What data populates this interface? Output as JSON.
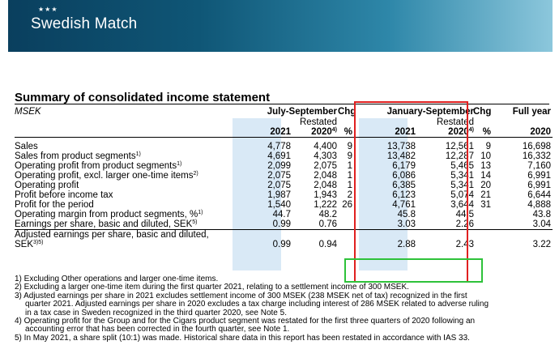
{
  "header": {
    "logo_stars": "★★★",
    "logo": "Swedish Match"
  },
  "table": {
    "title": "Summary of consolidated income statement",
    "unit": "MSEK",
    "period_q3": "July-September",
    "period_ytd": "January-September",
    "chg": "Chg",
    "full_year": "Full year",
    "restated": "Restated",
    "year_2021": "2021",
    "year_2020": "2020",
    "note_4": "4)",
    "percent": "%",
    "rows": [
      {
        "label": "Sales",
        "sup": "",
        "q3_2021": "4,778",
        "q3_2020": "4,400",
        "chg_q3": "9",
        "ytd_2021": "13,738",
        "ytd_2020": "12,561",
        "chg_ytd": "9",
        "fy_2020": "16,698"
      },
      {
        "label": "Sales from product segments",
        "sup": "1)",
        "q3_2021": "4,691",
        "q3_2020": "4,303",
        "chg_q3": "9",
        "ytd_2021": "13,482",
        "ytd_2020": "12,287",
        "chg_ytd": "10",
        "fy_2020": "16,332"
      },
      {
        "label": "Operating profit from product segments",
        "sup": "1)",
        "q3_2021": "2,099",
        "q3_2020": "2,075",
        "chg_q3": "1",
        "ytd_2021": "6,179",
        "ytd_2020": "5,465",
        "chg_ytd": "13",
        "fy_2020": "7,160"
      },
      {
        "label": "Operating profit, excl. larger one-time items",
        "sup": "2)",
        "q3_2021": "2,075",
        "q3_2020": "2,048",
        "chg_q3": "1",
        "ytd_2021": "6,086",
        "ytd_2020": "5,341",
        "chg_ytd": "14",
        "fy_2020": "6,991"
      },
      {
        "label": "Operating profit",
        "sup": "",
        "q3_2021": "2,075",
        "q3_2020": "2,048",
        "chg_q3": "1",
        "ytd_2021": "6,385",
        "ytd_2020": "5,341",
        "chg_ytd": "20",
        "fy_2020": "6,991"
      },
      {
        "label": "Profit before income tax",
        "sup": "",
        "q3_2021": "1,987",
        "q3_2020": "1,943",
        "chg_q3": "2",
        "ytd_2021": "6,123",
        "ytd_2020": "5,074",
        "chg_ytd": "21",
        "fy_2020": "6,644"
      },
      {
        "label": "Profit for the period",
        "sup": "",
        "q3_2021": "1,540",
        "q3_2020": "1,222",
        "chg_q3": "26",
        "ytd_2021": "4,761",
        "ytd_2020": "3,644",
        "chg_ytd": "31",
        "fy_2020": "4,888"
      },
      {
        "label": "Operating margin from product segments, %",
        "sup": "1)",
        "q3_2021": "44.7",
        "q3_2020": "48.2",
        "chg_q3": "",
        "ytd_2021": "45.8",
        "ytd_2020": "44.5",
        "chg_ytd": "",
        "fy_2020": "43.8"
      },
      {
        "label": "Earnings per share, basic and diluted, SEK",
        "sup": "5)",
        "q3_2021": "0.99",
        "q3_2020": "0.76",
        "chg_q3": "",
        "ytd_2021": "3.03",
        "ytd_2020": "2.26",
        "chg_ytd": "",
        "fy_2020": "3.04"
      }
    ],
    "adjusted": {
      "label_line1": "Adjusted earnings per share, basic and diluted,",
      "label_line2": "SEK",
      "sup": "3)5)",
      "q3_2021": "0.99",
      "q3_2020": "0.94",
      "ytd_2021": "2.88",
      "ytd_2020": "2.43",
      "fy_2020": "3.22"
    }
  },
  "notes": [
    "1) Excluding Other operations and larger one-time items.",
    "2) Excluding a larger one-time item during the first quarter 2021, relating to a settlement income of 300 MSEK.",
    "3) Adjusted earnings per share in 2021 excludes settlement income of 300 MSEK (238 MSEK net of tax) recognized in the first",
    "quarter 2021. Adjusted earnings per share in 2020 excludes a tax charge including interest of 286 MSEK related to adverse ruling",
    "in a tax case in Sweden recognized in the third quarter 2020, see Note 5.",
    "4) Operating profit for the Group and for the Cigars product segment was restated for the first three quarters of 2020 following an",
    "accounting error that has been corrected in the fourth quarter, see Note 1.",
    "5) In May 2021, a share split (10:1) was made. Historical share data in this report has been restated in accordance with IAS 33."
  ]
}
